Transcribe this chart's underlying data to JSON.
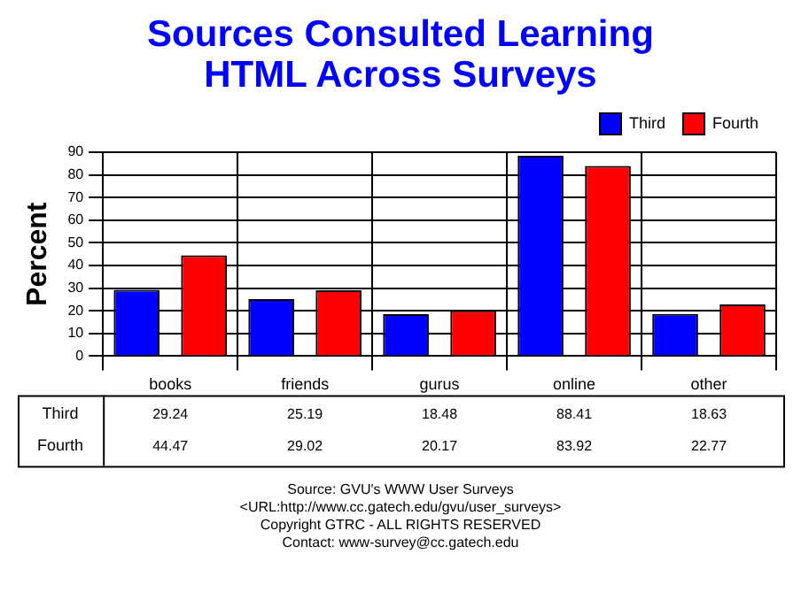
{
  "chart_data": {
    "type": "bar",
    "title": "Sources Consulted Learning HTML Across Surveys",
    "ylabel": "Percent",
    "categories": [
      "books",
      "friends",
      "gurus",
      "online",
      "other"
    ],
    "series": [
      {
        "name": "Third",
        "color": "#0000ff",
        "values": [
          29.24,
          25.19,
          18.48,
          88.41,
          18.63
        ]
      },
      {
        "name": "Fourth",
        "color": "#ff0000",
        "values": [
          44.47,
          29.02,
          20.17,
          83.92,
          22.77
        ]
      }
    ],
    "ylim": [
      0,
      90
    ],
    "yticks": [
      0,
      10,
      20,
      30,
      40,
      50,
      60,
      70,
      80,
      90
    ],
    "grid": true,
    "legend": "top right",
    "data_labels": true,
    "annotations": [
      "Source: GVU's WWW User Surveys",
      "<URL:http://www.cc.gatech.edu/gvu/user_surveys>",
      "Copyright GTRC -  ALL RIGHTS RESERVED",
      "Contact: www-survey@cc.gatech.edu"
    ]
  }
}
